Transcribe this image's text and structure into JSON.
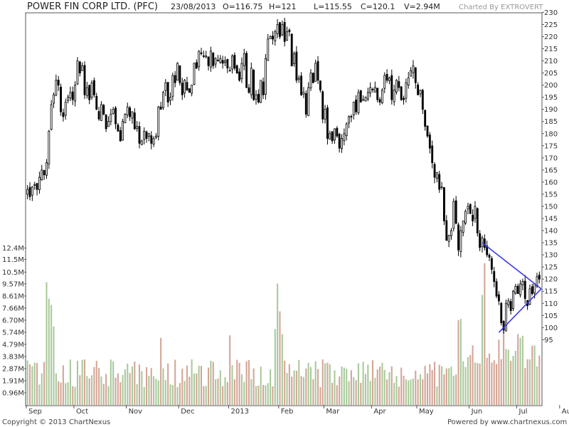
{
  "header": {
    "title": "POWER FIN CORP LTD. (PFC)",
    "date": "23/08/2013",
    "open": "O=116.75",
    "high": "H=121",
    "low": "L=115.55",
    "close": "C=120.1",
    "volume": "V=2.94M",
    "charted_by": "Charted By EXTROVERT"
  },
  "footer": {
    "copyright": "Copyright © 2013 ChartNexus",
    "powered_by": "Powered by www.chartnexus.com"
  },
  "colors": {
    "candle": "#000000",
    "volume_up": "#a9c99a",
    "volume_down": "#d4a596",
    "trendline": "#3a3ae6",
    "frame": "#555555"
  },
  "chart_data": {
    "type": "candlestick",
    "price_axis": {
      "ticks": [
        "230",
        "225",
        "220",
        "215",
        "210",
        "205",
        "200",
        "195",
        "190",
        "185",
        "180",
        "175",
        "170",
        "165",
        "160",
        "155",
        "150",
        "145",
        "140",
        "135",
        "130",
        "125",
        "120",
        "115",
        "110",
        "105",
        "100",
        "95"
      ],
      "range": [
        91,
        231
      ]
    },
    "volume_axis": {
      "ticks": [
        "12.4M",
        "11.5M",
        "10.5M",
        "9.57M",
        "8.61M",
        "7.66M",
        "6.70M",
        "5.74M",
        "4.79M",
        "3.83M",
        "2.87M",
        "1.91M",
        "0.96M"
      ],
      "range": [
        0,
        13.5
      ]
    },
    "x_labels": [
      "Sep",
      "Oct",
      "Nov",
      "Dec",
      "2013",
      "Feb",
      "Mar",
      "Apr",
      "May",
      "Jun",
      "Jul",
      "Aug"
    ],
    "month_start_index": [
      0,
      20,
      42,
      64,
      85,
      106,
      125,
      145,
      164,
      186,
      206,
      224
    ],
    "close": [
      157,
      154,
      158,
      159,
      157,
      162,
      165,
      163,
      168,
      181,
      192,
      196,
      202,
      200,
      189,
      187,
      193,
      195,
      197,
      194,
      200,
      210,
      205,
      208,
      196,
      199,
      194,
      201,
      196,
      190,
      186,
      192,
      188,
      182,
      185,
      188,
      190,
      184,
      181,
      177,
      185,
      188,
      191,
      187,
      189,
      182,
      183,
      176,
      177,
      181,
      178,
      180,
      176,
      178,
      179,
      191,
      190,
      197,
      201,
      193,
      195,
      204,
      201,
      209,
      201,
      196,
      202,
      198,
      197,
      200,
      209,
      207,
      214,
      213,
      212,
      212,
      208,
      214,
      208,
      211,
      210,
      211,
      209,
      210,
      207,
      206,
      212,
      207,
      205,
      202,
      209,
      213,
      199,
      197,
      207,
      194,
      196,
      193,
      202,
      196,
      211,
      219,
      220,
      219,
      222,
      225,
      220,
      225,
      218,
      222,
      222,
      208,
      213,
      202,
      203,
      196,
      197,
      188,
      199,
      205,
      201,
      209,
      202,
      198,
      186,
      190,
      178,
      180,
      177,
      182,
      179,
      174,
      178,
      180,
      184,
      187,
      187,
      193,
      189,
      197,
      193,
      194,
      195,
      197,
      199,
      198,
      199,
      194,
      193,
      198,
      204,
      202,
      203,
      194,
      198,
      202,
      199,
      194,
      194,
      201,
      203,
      206,
      208,
      201,
      196,
      198,
      190,
      183,
      179,
      174,
      168,
      162,
      164,
      157,
      158,
      144,
      136,
      138,
      140,
      152,
      143,
      132,
      140,
      144,
      148,
      150,
      147,
      144,
      150,
      139,
      133,
      137,
      133,
      130,
      129,
      124,
      119,
      113,
      111,
      102,
      99,
      110,
      111,
      107,
      115,
      117,
      114,
      118,
      119,
      112,
      109,
      116,
      114,
      118,
      121,
      120
    ]
  }
}
